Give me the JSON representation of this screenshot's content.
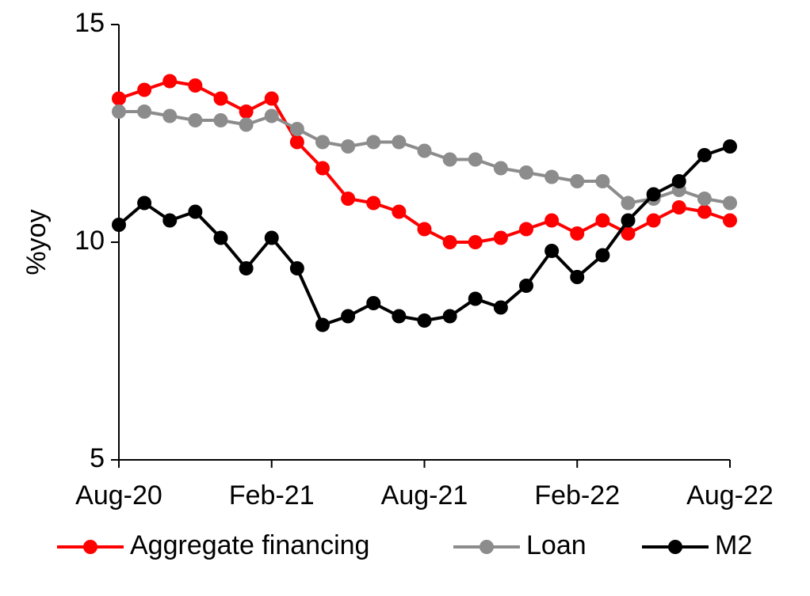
{
  "chart_data": {
    "type": "line",
    "ylabel": "%yoy",
    "xlabel": "",
    "ylim": [
      5,
      15
    ],
    "yticks": [
      5,
      10,
      15
    ],
    "x_tick_labels": [
      "Aug-20",
      "Feb-21",
      "Aug-21",
      "Feb-22",
      "Aug-22"
    ],
    "x": [
      "Aug-20",
      "Sep-20",
      "Oct-20",
      "Nov-20",
      "Dec-20",
      "Jan-21",
      "Feb-21",
      "Mar-21",
      "Apr-21",
      "May-21",
      "Jun-21",
      "Jul-21",
      "Aug-21",
      "Sep-21",
      "Oct-21",
      "Nov-21",
      "Dec-21",
      "Jan-22",
      "Feb-22",
      "Mar-22",
      "Apr-22",
      "May-22",
      "Jun-22",
      "Jul-22",
      "Aug-22"
    ],
    "grid": false,
    "legend_position": "bottom",
    "series": [
      {
        "name": "Aggregate financing",
        "color": "#ff0000",
        "values": [
          13.3,
          13.5,
          13.7,
          13.6,
          13.3,
          13.0,
          13.3,
          12.3,
          11.7,
          11.0,
          10.9,
          10.7,
          10.3,
          10.0,
          10.0,
          10.1,
          10.3,
          10.5,
          10.2,
          10.5,
          10.2,
          10.5,
          10.8,
          10.7,
          10.5
        ]
      },
      {
        "name": "Loan",
        "color": "#8c8c8c",
        "values": [
          13.0,
          13.0,
          12.9,
          12.8,
          12.8,
          12.7,
          12.9,
          12.6,
          12.3,
          12.2,
          12.3,
          12.3,
          12.1,
          11.9,
          11.9,
          11.7,
          11.6,
          11.5,
          11.4,
          11.4,
          10.9,
          11.0,
          11.2,
          11.0,
          10.9
        ]
      },
      {
        "name": "M2",
        "color": "#000000",
        "values": [
          10.4,
          10.9,
          10.5,
          10.7,
          10.1,
          9.4,
          10.1,
          9.4,
          8.1,
          8.3,
          8.6,
          8.3,
          8.2,
          8.3,
          8.7,
          8.5,
          9.0,
          9.8,
          9.2,
          9.7,
          10.5,
          11.1,
          11.4,
          12.0,
          12.2
        ]
      }
    ]
  }
}
